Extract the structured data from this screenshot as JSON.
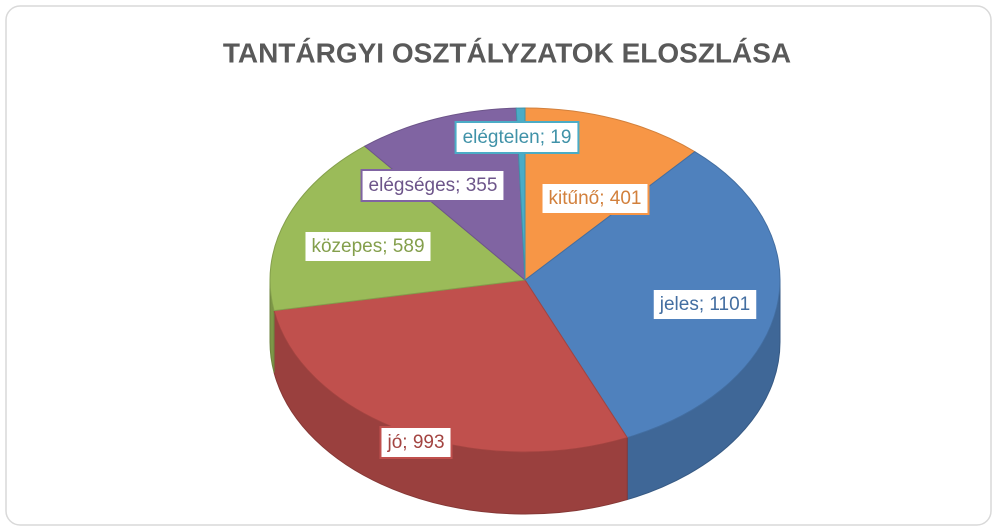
{
  "chart_data": {
    "type": "pie3d",
    "title": "TANTÁRGYI OSZTÁLYZATOK ELOSZLÁSA",
    "categories": [
      "kitűnő",
      "jeles",
      "jó",
      "közepes",
      "elégséges",
      "elégtelen"
    ],
    "values": [
      401,
      1101,
      993,
      589,
      355,
      19
    ],
    "value_labels": [
      "kitűnő; 401",
      "jeles; 1101",
      "jó; 993",
      "közepes; 589",
      "elégséges; 355",
      "elégtelen; 19"
    ],
    "colors": [
      "#f79646",
      "#4f81bd",
      "#c0504d",
      "#9bbb59",
      "#8064a2",
      "#4bacc6"
    ]
  }
}
